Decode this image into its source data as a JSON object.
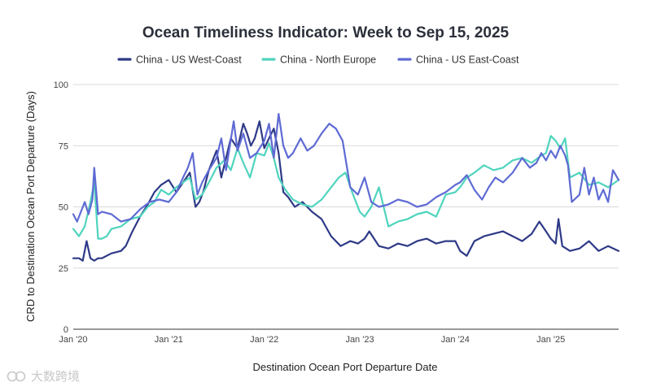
{
  "chart_data": {
    "type": "line",
    "title": "Ocean Timeliness Indicator: Week to Sep 15, 2025",
    "xlabel": "Destination Ocean Port Departure Date",
    "ylabel": "CRD to Destination Ocean Port Departure (Days)",
    "ylim": [
      0,
      100
    ],
    "yticks": [
      "0",
      "25",
      "50",
      "75",
      "100"
    ],
    "ytick_values": [
      0,
      25,
      50,
      75,
      100
    ],
    "xlim": [
      2020.0,
      2025.71
    ],
    "xticks": [
      "Jan '20",
      "Jan '21",
      "Jan '22",
      "Jan '23",
      "Jan '24",
      "Jan '25"
    ],
    "xtick_values": [
      2020,
      2021,
      2022,
      2023,
      2024,
      2025
    ],
    "legend_position": "top",
    "grid": true,
    "series": [
      {
        "name": "China - US West-Coast",
        "color": "#2e3a87",
        "x": [
          2020.0,
          2020.06,
          2020.1,
          2020.14,
          2020.18,
          2020.22,
          2020.26,
          2020.3,
          2020.4,
          2020.5,
          2020.55,
          2020.62,
          2020.7,
          2020.78,
          2020.85,
          2020.92,
          2021.0,
          2021.08,
          2021.15,
          2021.22,
          2021.28,
          2021.32,
          2021.36,
          2021.42,
          2021.5,
          2021.55,
          2021.6,
          2021.65,
          2021.72,
          2021.78,
          2021.82,
          2021.86,
          2021.9,
          2021.95,
          2022.0,
          2022.05,
          2022.1,
          2022.15,
          2022.2,
          2022.25,
          2022.32,
          2022.4,
          2022.5,
          2022.6,
          2022.7,
          2022.8,
          2022.9,
          2022.98,
          2023.05,
          2023.1,
          2023.2,
          2023.3,
          2023.4,
          2023.5,
          2023.6,
          2023.7,
          2023.8,
          2023.9,
          2024.0,
          2024.05,
          2024.12,
          2024.2,
          2024.3,
          2024.4,
          2024.5,
          2024.6,
          2024.7,
          2024.8,
          2024.88,
          2024.95,
          2025.0,
          2025.05,
          2025.08,
          2025.12,
          2025.2,
          2025.3,
          2025.4,
          2025.5,
          2025.6,
          2025.71
        ],
        "values": [
          29,
          29,
          28,
          36,
          29,
          28,
          29,
          29,
          31,
          32,
          34,
          40,
          46,
          51,
          56,
          59,
          61,
          56,
          60,
          64,
          50,
          52,
          56,
          65,
          73,
          62,
          70,
          78,
          74,
          84,
          80,
          75,
          78,
          85,
          74,
          78,
          82,
          72,
          56,
          54,
          50,
          52,
          48,
          45,
          38,
          34,
          36,
          35,
          37,
          40,
          34,
          33,
          35,
          34,
          36,
          37,
          35,
          36,
          36,
          32,
          30,
          36,
          38,
          39,
          40,
          38,
          36,
          39,
          44,
          40,
          37,
          35,
          45,
          34,
          32,
          33,
          36,
          32,
          34,
          32
        ]
      },
      {
        "name": "China - North Europe",
        "color": "#4fd4bd",
        "x": [
          2020.0,
          2020.06,
          2020.12,
          2020.18,
          2020.22,
          2020.26,
          2020.3,
          2020.35,
          2020.4,
          2020.5,
          2020.6,
          2020.7,
          2020.78,
          2020.85,
          2020.92,
          2021.0,
          2021.08,
          2021.15,
          2021.22,
          2021.28,
          2021.35,
          2021.42,
          2021.5,
          2021.58,
          2021.65,
          2021.72,
          2021.78,
          2021.85,
          2021.92,
          2022.0,
          2022.05,
          2022.1,
          2022.15,
          2022.22,
          2022.3,
          2022.4,
          2022.5,
          2022.6,
          2022.7,
          2022.78,
          2022.85,
          2022.92,
          2023.0,
          2023.05,
          2023.12,
          2023.2,
          2023.3,
          2023.4,
          2023.5,
          2023.6,
          2023.7,
          2023.8,
          2023.9,
          2024.0,
          2024.05,
          2024.12,
          2024.2,
          2024.3,
          2024.4,
          2024.5,
          2024.6,
          2024.7,
          2024.8,
          2024.9,
          2024.95,
          2025.0,
          2025.05,
          2025.1,
          2025.15,
          2025.2,
          2025.3,
          2025.4,
          2025.5,
          2025.6,
          2025.71
        ],
        "values": [
          41,
          38,
          42,
          52,
          60,
          37,
          37,
          38,
          41,
          42,
          45,
          46,
          50,
          52,
          57,
          55,
          58,
          60,
          62,
          53,
          55,
          60,
          66,
          69,
          65,
          74,
          68,
          62,
          72,
          71,
          76,
          70,
          62,
          57,
          53,
          51,
          50,
          53,
          58,
          62,
          64,
          56,
          48,
          46,
          50,
          58,
          42,
          44,
          45,
          47,
          48,
          46,
          55,
          56,
          58,
          62,
          64,
          67,
          65,
          66,
          69,
          70,
          68,
          71,
          72,
          79,
          77,
          74,
          78,
          62,
          64,
          59,
          60,
          58,
          61
        ]
      },
      {
        "name": "China - US East-Coast",
        "color": "#5f6bd4",
        "x": [
          2020.0,
          2020.04,
          2020.08,
          2020.12,
          2020.16,
          2020.2,
          2020.22,
          2020.26,
          2020.3,
          2020.4,
          2020.5,
          2020.6,
          2020.7,
          2020.8,
          2020.9,
          2021.0,
          2021.08,
          2021.15,
          2021.2,
          2021.25,
          2021.3,
          2021.35,
          2021.42,
          2021.5,
          2021.55,
          2021.6,
          2021.68,
          2021.72,
          2021.78,
          2021.85,
          2021.92,
          2022.0,
          2022.05,
          2022.1,
          2022.15,
          2022.2,
          2022.25,
          2022.3,
          2022.38,
          2022.45,
          2022.52,
          2022.6,
          2022.68,
          2022.75,
          2022.82,
          2022.9,
          2022.98,
          2023.05,
          2023.12,
          2023.2,
          2023.3,
          2023.4,
          2023.5,
          2023.6,
          2023.7,
          2023.8,
          2023.9,
          2024.0,
          2024.05,
          2024.12,
          2024.2,
          2024.28,
          2024.35,
          2024.42,
          2024.5,
          2024.6,
          2024.7,
          2024.78,
          2024.85,
          2024.9,
          2024.95,
          2025.0,
          2025.05,
          2025.1,
          2025.15,
          2025.18,
          2025.22,
          2025.3,
          2025.35,
          2025.4,
          2025.45,
          2025.5,
          2025.55,
          2025.6,
          2025.65,
          2025.71
        ],
        "values": [
          47,
          44,
          48,
          52,
          47,
          53,
          66,
          47,
          48,
          47,
          44,
          45,
          49,
          52,
          53,
          52,
          56,
          62,
          66,
          72,
          55,
          60,
          65,
          70,
          78,
          65,
          85,
          73,
          80,
          70,
          72,
          77,
          84,
          70,
          88,
          75,
          70,
          72,
          78,
          73,
          75,
          80,
          84,
          82,
          77,
          58,
          55,
          62,
          52,
          50,
          51,
          53,
          52,
          50,
          51,
          54,
          56,
          59,
          60,
          63,
          57,
          53,
          58,
          62,
          60,
          64,
          70,
          66,
          68,
          72,
          69,
          73,
          70,
          75,
          71,
          67,
          52,
          55,
          66,
          55,
          62,
          53,
          57,
          52,
          65,
          61
        ]
      }
    ]
  },
  "watermark": {
    "text": "大数跨境"
  }
}
